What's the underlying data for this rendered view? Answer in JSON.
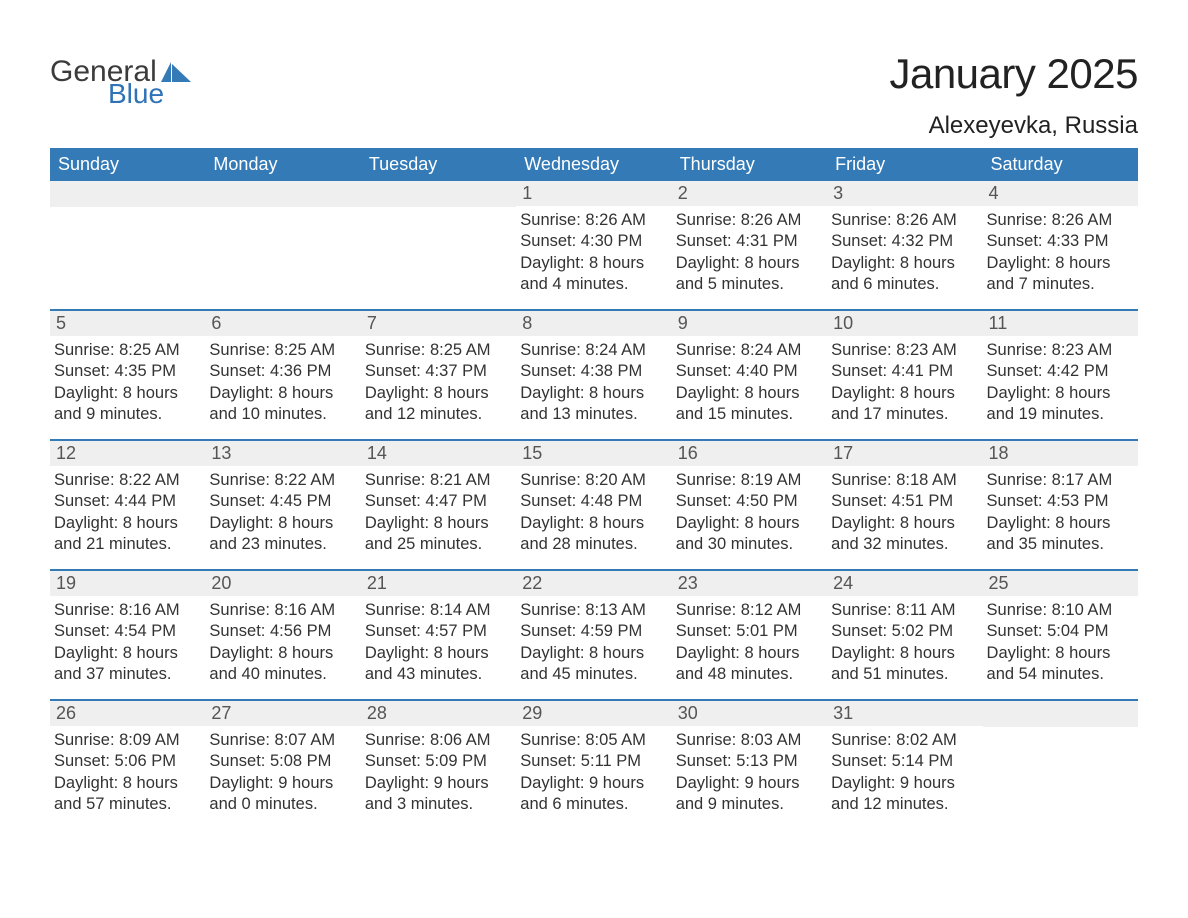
{
  "brand": {
    "word1": "General",
    "word2": "Blue",
    "word1_color": "#3b3b3b",
    "word2_color": "#2f73b6",
    "flag_color": "#337ab7"
  },
  "title": "January 2025",
  "location": "Alexeyevka, Russia",
  "colors": {
    "header_bg": "#337ab7",
    "header_text": "#ffffff",
    "daynum_bg": "#efefef",
    "week_border": "#337ab7",
    "body_text": "#333333",
    "background": "#ffffff"
  },
  "days_of_week": [
    "Sunday",
    "Monday",
    "Tuesday",
    "Wednesday",
    "Thursday",
    "Friday",
    "Saturday"
  ],
  "weeks": [
    [
      {
        "blank": true
      },
      {
        "blank": true
      },
      {
        "blank": true
      },
      {
        "num": "1",
        "sunrise": "Sunrise: 8:26 AM",
        "sunset": "Sunset: 4:30 PM",
        "day1": "Daylight: 8 hours",
        "day2": "and 4 minutes."
      },
      {
        "num": "2",
        "sunrise": "Sunrise: 8:26 AM",
        "sunset": "Sunset: 4:31 PM",
        "day1": "Daylight: 8 hours",
        "day2": "and 5 minutes."
      },
      {
        "num": "3",
        "sunrise": "Sunrise: 8:26 AM",
        "sunset": "Sunset: 4:32 PM",
        "day1": "Daylight: 8 hours",
        "day2": "and 6 minutes."
      },
      {
        "num": "4",
        "sunrise": "Sunrise: 8:26 AM",
        "sunset": "Sunset: 4:33 PM",
        "day1": "Daylight: 8 hours",
        "day2": "and 7 minutes."
      }
    ],
    [
      {
        "num": "5",
        "sunrise": "Sunrise: 8:25 AM",
        "sunset": "Sunset: 4:35 PM",
        "day1": "Daylight: 8 hours",
        "day2": "and 9 minutes."
      },
      {
        "num": "6",
        "sunrise": "Sunrise: 8:25 AM",
        "sunset": "Sunset: 4:36 PM",
        "day1": "Daylight: 8 hours",
        "day2": "and 10 minutes."
      },
      {
        "num": "7",
        "sunrise": "Sunrise: 8:25 AM",
        "sunset": "Sunset: 4:37 PM",
        "day1": "Daylight: 8 hours",
        "day2": "and 12 minutes."
      },
      {
        "num": "8",
        "sunrise": "Sunrise: 8:24 AM",
        "sunset": "Sunset: 4:38 PM",
        "day1": "Daylight: 8 hours",
        "day2": "and 13 minutes."
      },
      {
        "num": "9",
        "sunrise": "Sunrise: 8:24 AM",
        "sunset": "Sunset: 4:40 PM",
        "day1": "Daylight: 8 hours",
        "day2": "and 15 minutes."
      },
      {
        "num": "10",
        "sunrise": "Sunrise: 8:23 AM",
        "sunset": "Sunset: 4:41 PM",
        "day1": "Daylight: 8 hours",
        "day2": "and 17 minutes."
      },
      {
        "num": "11",
        "sunrise": "Sunrise: 8:23 AM",
        "sunset": "Sunset: 4:42 PM",
        "day1": "Daylight: 8 hours",
        "day2": "and 19 minutes."
      }
    ],
    [
      {
        "num": "12",
        "sunrise": "Sunrise: 8:22 AM",
        "sunset": "Sunset: 4:44 PM",
        "day1": "Daylight: 8 hours",
        "day2": "and 21 minutes."
      },
      {
        "num": "13",
        "sunrise": "Sunrise: 8:22 AM",
        "sunset": "Sunset: 4:45 PM",
        "day1": "Daylight: 8 hours",
        "day2": "and 23 minutes."
      },
      {
        "num": "14",
        "sunrise": "Sunrise: 8:21 AM",
        "sunset": "Sunset: 4:47 PM",
        "day1": "Daylight: 8 hours",
        "day2": "and 25 minutes."
      },
      {
        "num": "15",
        "sunrise": "Sunrise: 8:20 AM",
        "sunset": "Sunset: 4:48 PM",
        "day1": "Daylight: 8 hours",
        "day2": "and 28 minutes."
      },
      {
        "num": "16",
        "sunrise": "Sunrise: 8:19 AM",
        "sunset": "Sunset: 4:50 PM",
        "day1": "Daylight: 8 hours",
        "day2": "and 30 minutes."
      },
      {
        "num": "17",
        "sunrise": "Sunrise: 8:18 AM",
        "sunset": "Sunset: 4:51 PM",
        "day1": "Daylight: 8 hours",
        "day2": "and 32 minutes."
      },
      {
        "num": "18",
        "sunrise": "Sunrise: 8:17 AM",
        "sunset": "Sunset: 4:53 PM",
        "day1": "Daylight: 8 hours",
        "day2": "and 35 minutes."
      }
    ],
    [
      {
        "num": "19",
        "sunrise": "Sunrise: 8:16 AM",
        "sunset": "Sunset: 4:54 PM",
        "day1": "Daylight: 8 hours",
        "day2": "and 37 minutes."
      },
      {
        "num": "20",
        "sunrise": "Sunrise: 8:16 AM",
        "sunset": "Sunset: 4:56 PM",
        "day1": "Daylight: 8 hours",
        "day2": "and 40 minutes."
      },
      {
        "num": "21",
        "sunrise": "Sunrise: 8:14 AM",
        "sunset": "Sunset: 4:57 PM",
        "day1": "Daylight: 8 hours",
        "day2": "and 43 minutes."
      },
      {
        "num": "22",
        "sunrise": "Sunrise: 8:13 AM",
        "sunset": "Sunset: 4:59 PM",
        "day1": "Daylight: 8 hours",
        "day2": "and 45 minutes."
      },
      {
        "num": "23",
        "sunrise": "Sunrise: 8:12 AM",
        "sunset": "Sunset: 5:01 PM",
        "day1": "Daylight: 8 hours",
        "day2": "and 48 minutes."
      },
      {
        "num": "24",
        "sunrise": "Sunrise: 8:11 AM",
        "sunset": "Sunset: 5:02 PM",
        "day1": "Daylight: 8 hours",
        "day2": "and 51 minutes."
      },
      {
        "num": "25",
        "sunrise": "Sunrise: 8:10 AM",
        "sunset": "Sunset: 5:04 PM",
        "day1": "Daylight: 8 hours",
        "day2": "and 54 minutes."
      }
    ],
    [
      {
        "num": "26",
        "sunrise": "Sunrise: 8:09 AM",
        "sunset": "Sunset: 5:06 PM",
        "day1": "Daylight: 8 hours",
        "day2": "and 57 minutes."
      },
      {
        "num": "27",
        "sunrise": "Sunrise: 8:07 AM",
        "sunset": "Sunset: 5:08 PM",
        "day1": "Daylight: 9 hours",
        "day2": "and 0 minutes."
      },
      {
        "num": "28",
        "sunrise": "Sunrise: 8:06 AM",
        "sunset": "Sunset: 5:09 PM",
        "day1": "Daylight: 9 hours",
        "day2": "and 3 minutes."
      },
      {
        "num": "29",
        "sunrise": "Sunrise: 8:05 AM",
        "sunset": "Sunset: 5:11 PM",
        "day1": "Daylight: 9 hours",
        "day2": "and 6 minutes."
      },
      {
        "num": "30",
        "sunrise": "Sunrise: 8:03 AM",
        "sunset": "Sunset: 5:13 PM",
        "day1": "Daylight: 9 hours",
        "day2": "and 9 minutes."
      },
      {
        "num": "31",
        "sunrise": "Sunrise: 8:02 AM",
        "sunset": "Sunset: 5:14 PM",
        "day1": "Daylight: 9 hours",
        "day2": "and 12 minutes."
      },
      {
        "blank": true
      }
    ]
  ]
}
